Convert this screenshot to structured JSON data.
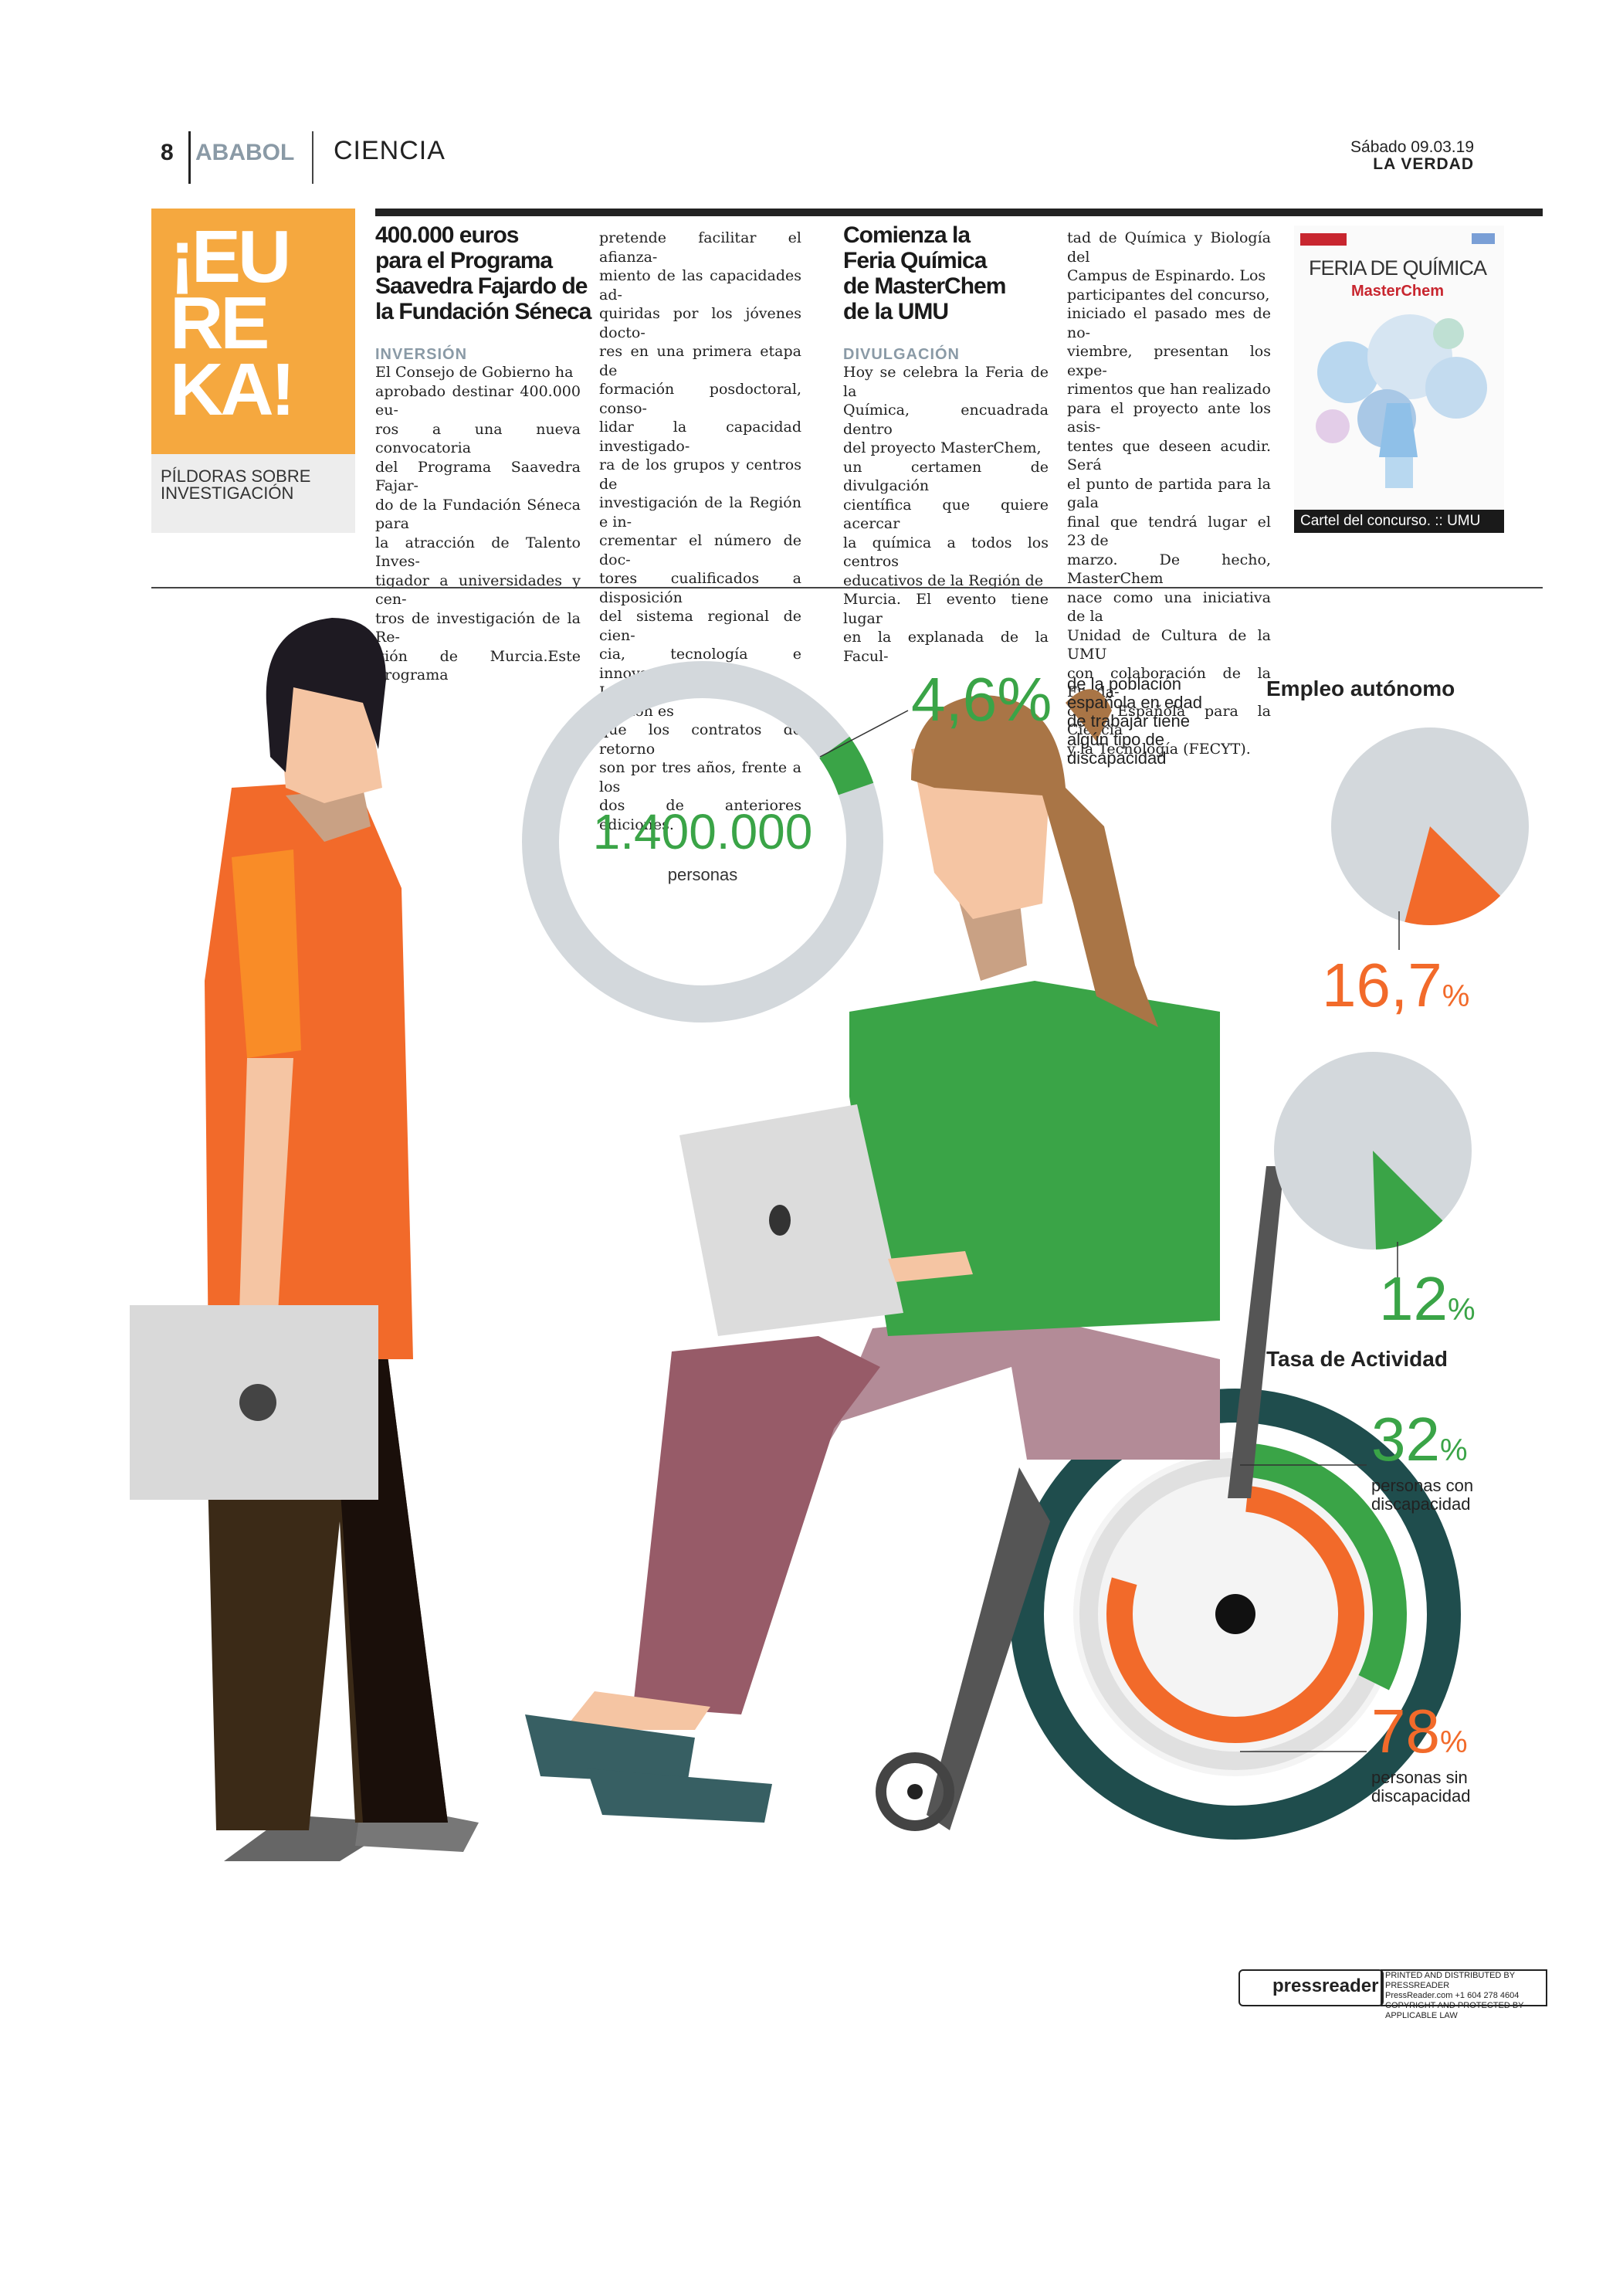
{
  "header": {
    "page_number": "8",
    "section": "ABABOL",
    "subsection": "CIENCIA",
    "date": "Sábado 09.03.19",
    "publication": "LA VERDAD"
  },
  "eureka": {
    "lines": [
      "¡EU",
      "RE",
      "KA!"
    ],
    "subtitle": [
      "PÍLDORAS SOBRE",
      "INVESTIGACIÓN"
    ]
  },
  "article1": {
    "headline": [
      "400.000 euros",
      "para el Programa",
      "Saavedra Fajardo de",
      "la Fundación Séneca"
    ],
    "kicker": "INVERSIÓN",
    "col1": [
      "El Consejo de Gobierno ha",
      "aprobado destinar 400.000 eu-",
      "ros a una nueva convocatoria",
      "del Programa Saavedra Fajar-",
      "do de la Fundación Séneca para",
      "la atracción de Talento Inves-",
      "tigador a universidades y cen-",
      "tros de investigación de la Re-",
      "gión de Murcia.Este programa"
    ],
    "col2": [
      "pretende facilitar el afianza-",
      "miento de las capacidades ad-",
      "quiridas por los jóvenes docto-",
      "res en una primera etapa de",
      "formación posdoctoral, conso-",
      "lidar la capacidad investigado-",
      "ra de los grupos y centros de",
      "investigación de la Región e in-",
      "crementar el número de doc-",
      "tores cualificados a disposición",
      "del sistema regional de cien-",
      "cia, tecnología e innovación.",
      "La novedad de esta edición es",
      "que los contratos de retorno",
      "son por tres años, frente a los",
      "dos de anteriores ediciones."
    ]
  },
  "article2": {
    "headline": [
      "Comienza la",
      "Feria Química",
      "de MasterChem",
      "de la UMU"
    ],
    "kicker": "DIVULGACIÓN",
    "col1": [
      "Hoy se celebra la Feria de la",
      "Química, encuadrada dentro",
      "del proyecto MasterChem,",
      "un certamen de divulgación",
      "científica que quiere acercar",
      "la química a todos los centros",
      "educativos de la Región de",
      "Murcia. El evento tiene lugar",
      "en la explanada de la Facul-"
    ],
    "col2": [
      "tad de Química y Biología del",
      "Campus de Espinardo. Los",
      "participantes del concurso,",
      "iniciado el pasado mes de no-",
      "viembre, presentan los expe-",
      "rimentos que han realizado",
      "para el proyecto ante los asis-",
      "tentes que deseen acudir. Será",
      "el punto de partida para la gala",
      "final que tendrá lugar el 23 de",
      "marzo. De hecho, MasterChem",
      "nace como una iniciativa de la",
      "Unidad de Cultura de la UMU",
      "con colaboración de la Funda-",
      "ción Española para la Ciencia",
      "y la Tecnología (FECYT)."
    ]
  },
  "poster": {
    "title": "FERIA DE QUÍMICA",
    "brand": "MasterChem",
    "caption": "Cartel del concurso. :: UMU"
  },
  "infographic": {
    "population": "1.400.000",
    "population_label": "personas",
    "disability_pct": "4,6%",
    "disability_desc": [
      "de la población",
      "española en edad",
      "de trabajar tiene",
      "algún tipo de",
      "discapacidad"
    ],
    "self_employment_title": "Empleo autónomo",
    "self_emp_a_value": "16,7",
    "self_emp_b_value": "12",
    "pct_sign": "%",
    "activity_title": "Tasa de Actividad",
    "activity_disabled_value": "32",
    "activity_disabled_desc": [
      "personas con",
      "discapacidad"
    ],
    "activity_nondisabled_value": "78",
    "activity_nondisabled_desc": [
      "personas sin",
      "discapacidad"
    ],
    "ring_fraction": 0.046,
    "pie_a_fraction": 0.167,
    "pie_b_fraction": 0.12,
    "wheel_outer_fraction": 0.32,
    "wheel_inner_fraction": 0.78,
    "colors": {
      "green": "#3aa447",
      "orange": "#f26a2a",
      "gray": "#d3d8dc"
    }
  },
  "footer": {
    "pressreader": "pressreader",
    "printed_lines": [
      "PRINTED AND DISTRIBUTED BY PRESSREADER",
      "PressReader.com  +1 604 278 4604",
      "COPYRIGHT AND PROTECTED BY APPLICABLE LAW"
    ]
  }
}
